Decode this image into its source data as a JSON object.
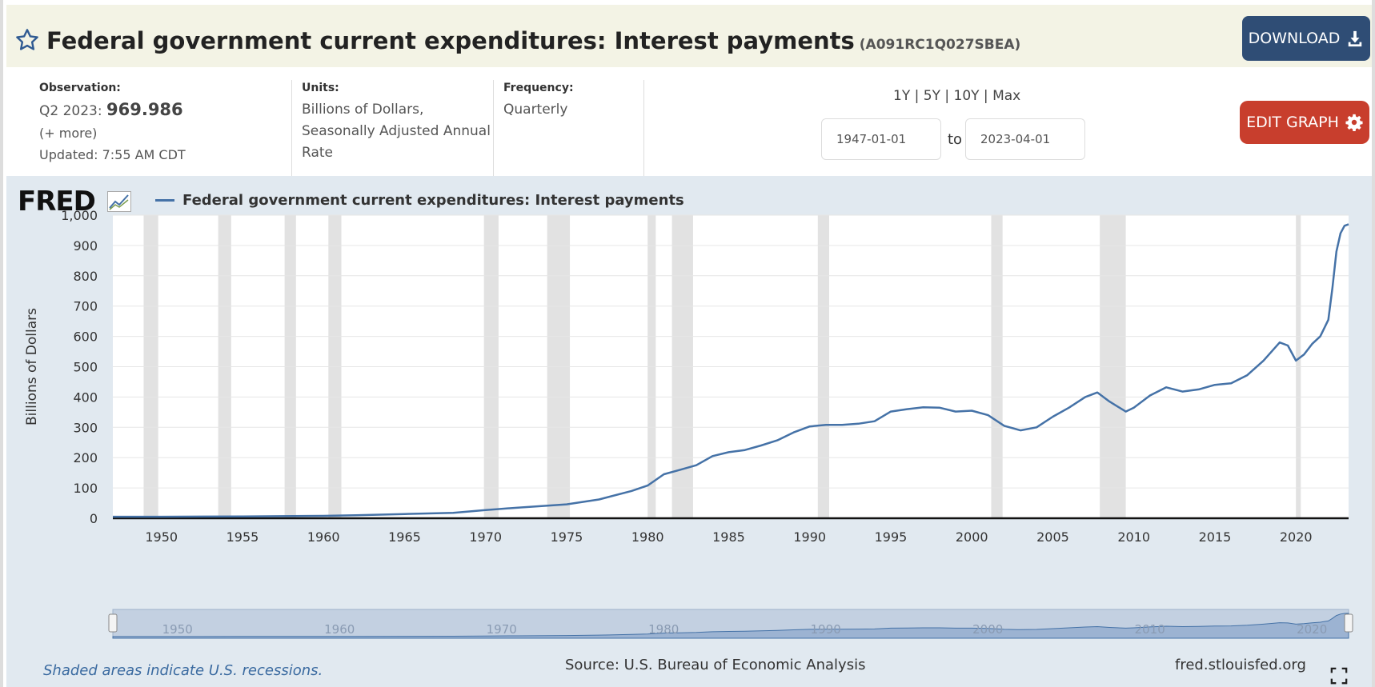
{
  "header": {
    "title": "Federal government current expenditures: Interest payments",
    "series_id": "(A091RC1Q027SBEA)",
    "download_label": "DOWNLOAD"
  },
  "meta": {
    "observation_label": "Observation:",
    "observation_period": "Q2 2023:",
    "observation_value": "969.986",
    "more_label": "(+ more)",
    "updated": "Updated: 7:55 AM CDT",
    "units_label": "Units:",
    "units_lines": [
      "Billions of Dollars,",
      "Seasonally Adjusted Annual",
      "Rate"
    ],
    "frequency_label": "Frequency:",
    "frequency_value": "Quarterly",
    "ranges": [
      "1Y",
      "5Y",
      "10Y",
      "Max"
    ],
    "date_from": "1947-01-01",
    "date_to": "2023-04-01",
    "to_label": "to",
    "edit_label": "EDIT GRAPH"
  },
  "graph": {
    "logo": "FRED",
    "recession_note": "Shaded areas indicate U.S. recessions.",
    "source": "Source: U.S. Bureau of Economic Analysis",
    "site": "fred.stlouisfed.org"
  },
  "colors": {
    "series": "#4572a7",
    "recession": "#e2e2e2",
    "download": "#2f4d75",
    "edit": "#c83e2d"
  },
  "chart_data": {
    "type": "line",
    "title": "",
    "legend": [
      "Federal government current expenditures: Interest payments"
    ],
    "xlabel": "",
    "ylabel": "Billions of Dollars",
    "xlim": [
      1947.0,
      2023.25
    ],
    "ylim": [
      0,
      1000
    ],
    "y_ticks": [
      0,
      100,
      200,
      300,
      400,
      500,
      600,
      700,
      800,
      900,
      1000
    ],
    "y_tick_labels": [
      "0",
      "100",
      "200",
      "300",
      "400",
      "500",
      "600",
      "700",
      "800",
      "900",
      "1,000"
    ],
    "x_ticks": [
      1950,
      1955,
      1960,
      1965,
      1970,
      1975,
      1980,
      1985,
      1990,
      1995,
      2000,
      2005,
      2010,
      2015,
      2020
    ],
    "navigator_ticks": [
      1950,
      1960,
      1970,
      1980,
      1990,
      2000,
      2010,
      2020
    ],
    "recessions": [
      [
        1948.9,
        1949.8
      ],
      [
        1953.5,
        1954.3
      ],
      [
        1957.6,
        1958.3
      ],
      [
        1960.3,
        1961.1
      ],
      [
        1969.9,
        1970.8
      ],
      [
        1973.8,
        1975.2
      ],
      [
        1980.0,
        1980.5
      ],
      [
        1981.5,
        1982.8
      ],
      [
        1990.5,
        1991.2
      ],
      [
        2001.2,
        2001.9
      ],
      [
        2007.9,
        2009.5
      ],
      [
        2020.0,
        2020.3
      ]
    ],
    "series": [
      {
        "name": "Federal government current expenditures: Interest payments",
        "x": [
          1947,
          1950,
          1955,
          1960,
          1962,
          1965,
          1968,
          1970,
          1972,
          1975,
          1977,
          1979,
          1980,
          1981,
          1982,
          1983,
          1984,
          1985,
          1986,
          1987,
          1988,
          1989,
          1990,
          1991,
          1992,
          1993,
          1994,
          1995,
          1996,
          1997,
          1998,
          1999,
          2000,
          2001,
          2002,
          2003,
          2004,
          2005,
          2006,
          2007,
          2007.75,
          2008.5,
          2009.5,
          2010,
          2011,
          2012,
          2013,
          2014,
          2015,
          2016,
          2017,
          2018,
          2019,
          2019.5,
          2020,
          2020.5,
          2021,
          2021.5,
          2022,
          2022.25,
          2022.5,
          2022.75,
          2023,
          2023.25
        ],
        "values": [
          5,
          5,
          6,
          8,
          10,
          14,
          18,
          27,
          35,
          46,
          62,
          90,
          108,
          145,
          160,
          175,
          205,
          218,
          225,
          240,
          257,
          283,
          303,
          308,
          308,
          312,
          320,
          352,
          360,
          366,
          365,
          352,
          355,
          340,
          305,
          290,
          300,
          335,
          365,
          400,
          415,
          385,
          352,
          365,
          405,
          432,
          418,
          425,
          440,
          445,
          472,
          520,
          580,
          570,
          520,
          540,
          575,
          600,
          655,
          760,
          880,
          940,
          965,
          970
        ]
      }
    ]
  }
}
